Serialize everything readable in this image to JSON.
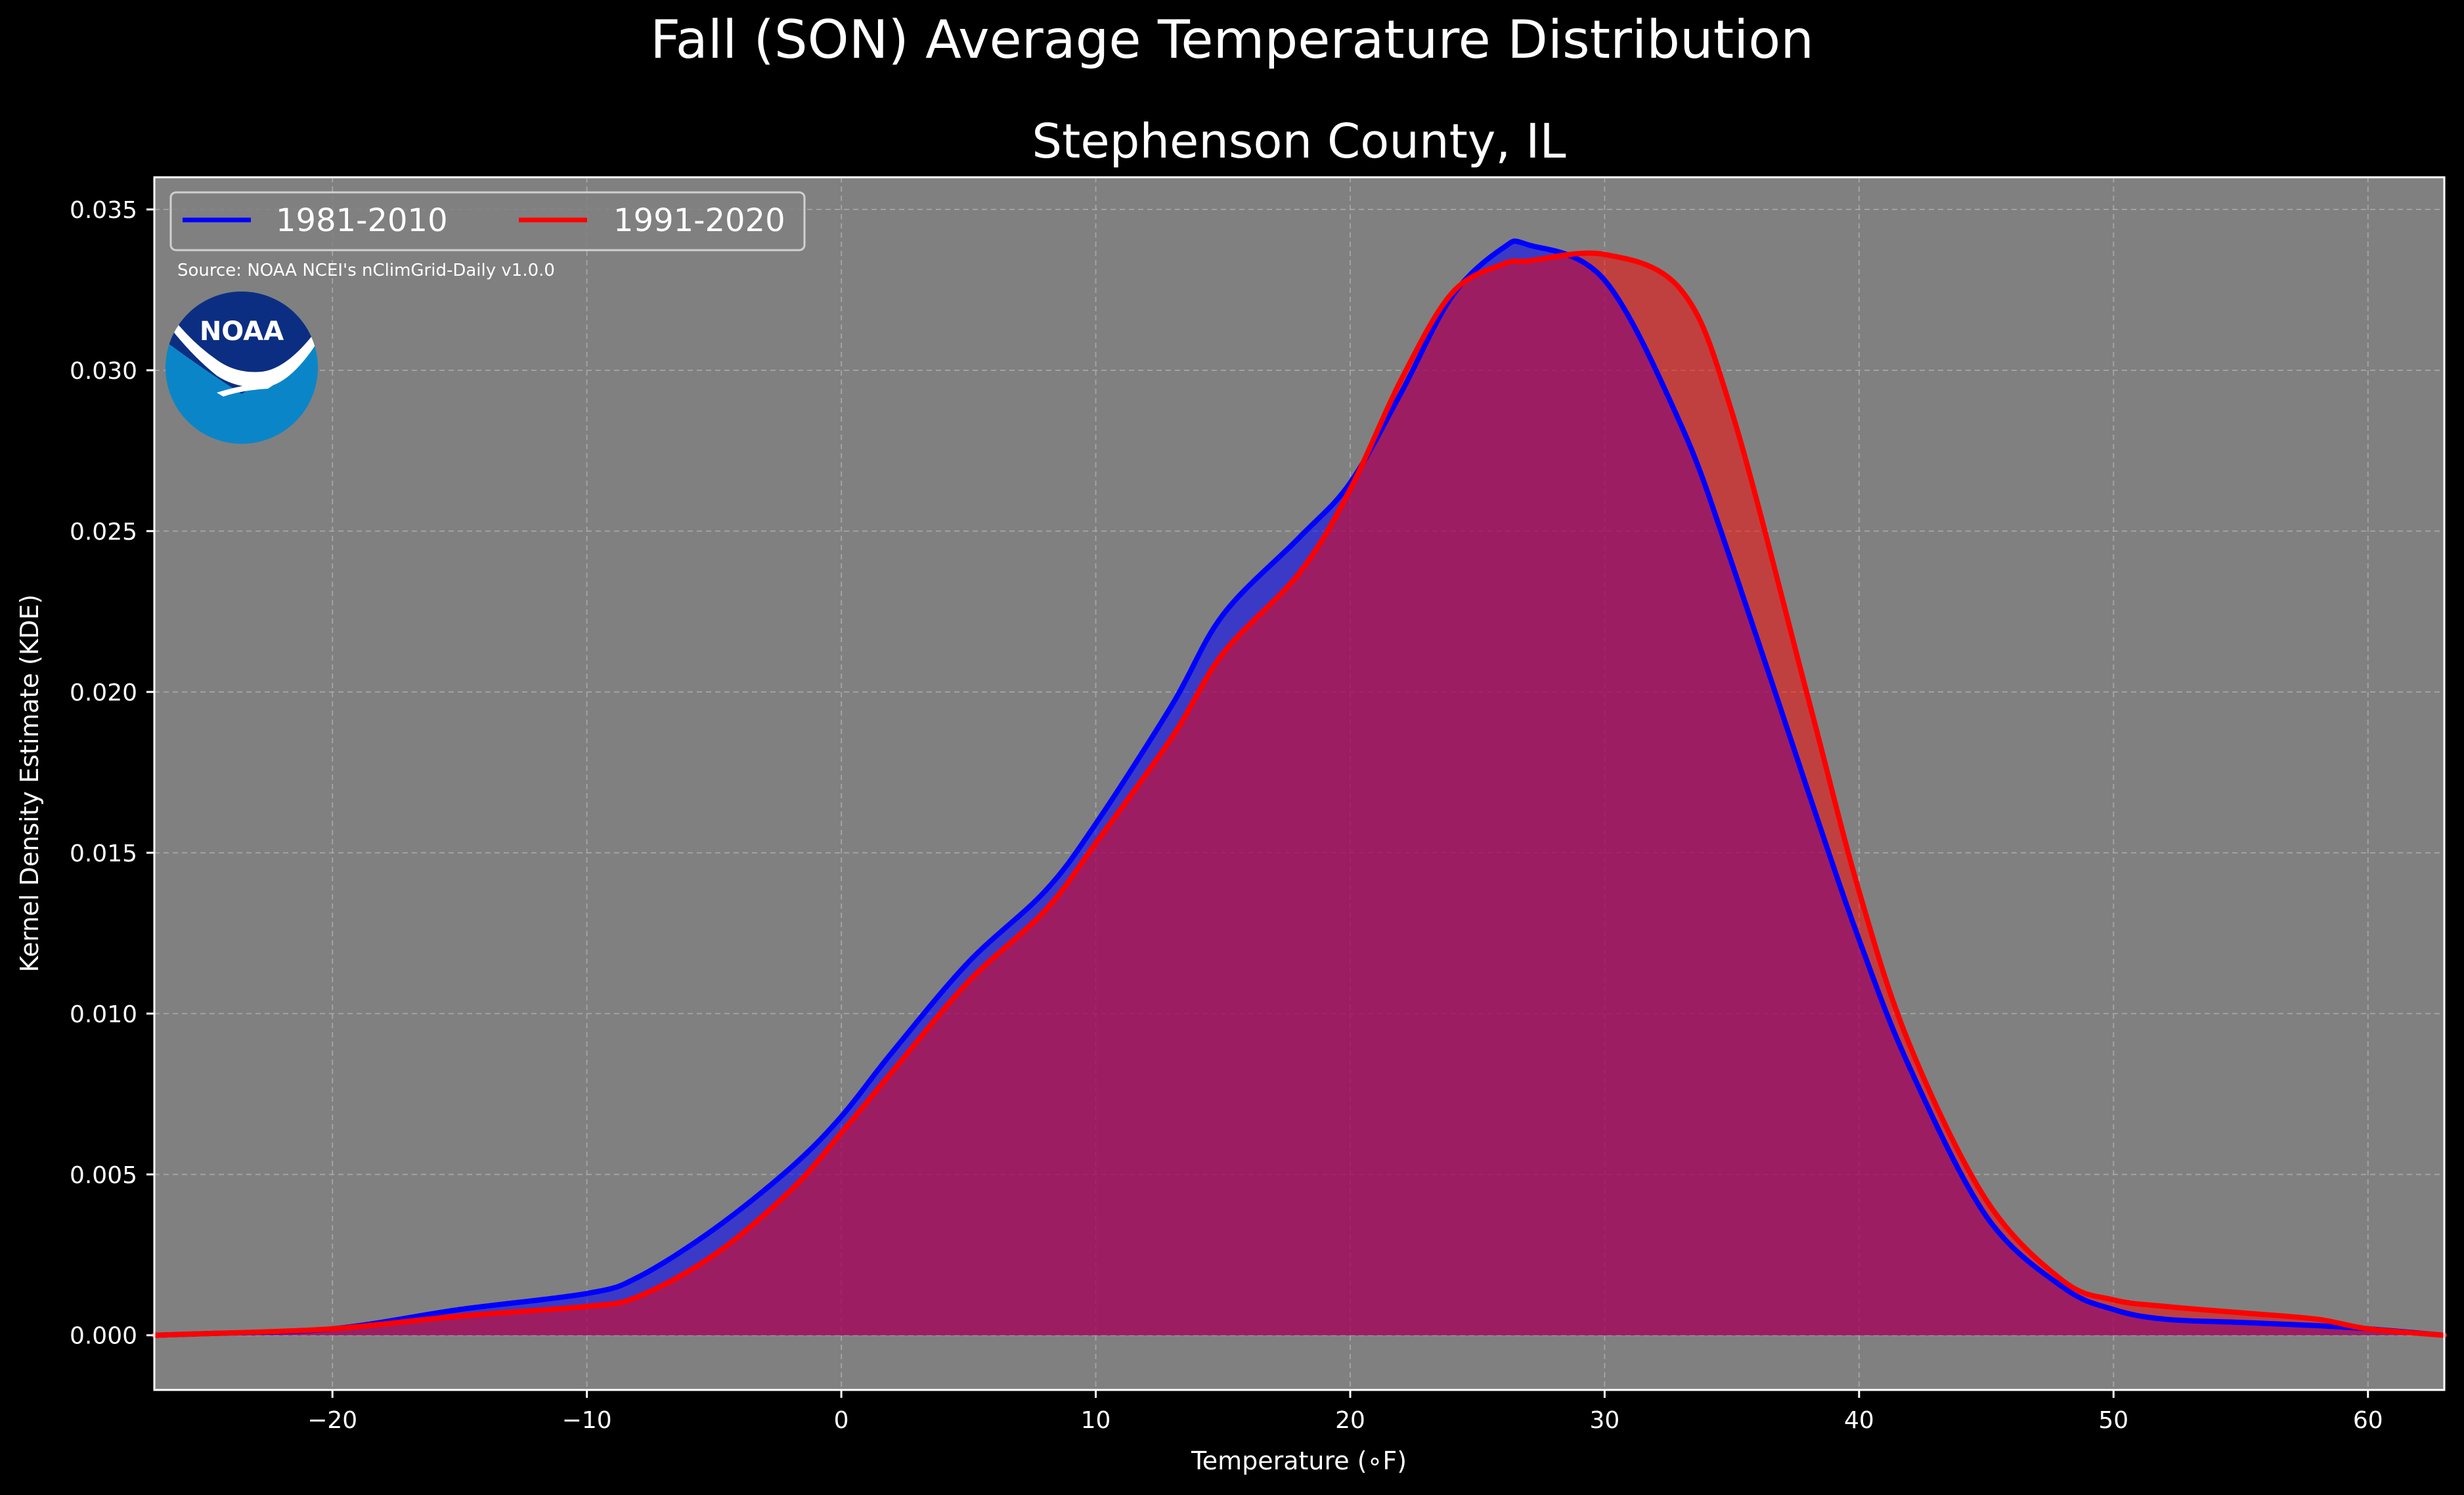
{
  "chart_data": {
    "type": "area",
    "title": "Fall (SON) Average Temperature Distribution",
    "subtitle": "Stephenson County, IL",
    "xlabel": "Temperature (∘F)",
    "ylabel": "Kernel Density Estimate (KDE)",
    "xlim": [
      -27,
      63
    ],
    "ylim": [
      -0.0017,
      0.036
    ],
    "x_ticks": [
      -20,
      -10,
      0,
      10,
      20,
      30,
      40,
      50,
      60
    ],
    "x_tick_labels": [
      "−20",
      "−10",
      "0",
      "10",
      "20",
      "30",
      "40",
      "50",
      "60"
    ],
    "y_ticks": [
      0.0,
      0.005,
      0.01,
      0.015,
      0.02,
      0.025,
      0.03,
      0.035
    ],
    "y_tick_labels": [
      "0.000",
      "0.005",
      "0.010",
      "0.015",
      "0.020",
      "0.025",
      "0.030",
      "0.035"
    ],
    "grid": true,
    "legend_position": "top-left",
    "background_color": "#808080",
    "x": [
      -27,
      -25,
      -20,
      -15,
      -10,
      -8,
      -5,
      -2,
      0,
      2,
      5,
      8,
      10,
      13,
      15,
      18,
      20,
      22,
      24,
      26,
      27,
      30,
      33,
      35,
      38,
      40,
      42,
      45,
      48,
      50,
      52,
      55,
      58,
      60,
      63
    ],
    "series": [
      {
        "name": "1981-2010",
        "color": "#0000ff",
        "values": [
          0.0,
          5e-05,
          0.0002,
          0.0008,
          0.0013,
          0.0018,
          0.0033,
          0.0052,
          0.0068,
          0.0088,
          0.0116,
          0.0138,
          0.0159,
          0.0196,
          0.0224,
          0.0248,
          0.0265,
          0.0293,
          0.0323,
          0.0338,
          0.0339,
          0.0328,
          0.0283,
          0.024,
          0.0169,
          0.0123,
          0.0083,
          0.0037,
          0.0015,
          0.0008,
          0.0005,
          0.0004,
          0.0003,
          0.0002,
          0.0
        ]
      },
      {
        "name": "1991-2020",
        "color": "#ff0000",
        "values": [
          0.0,
          5e-05,
          0.0002,
          0.0006,
          0.0009,
          0.0012,
          0.0025,
          0.0045,
          0.0063,
          0.0082,
          0.011,
          0.0132,
          0.0153,
          0.0186,
          0.0212,
          0.0237,
          0.0263,
          0.0297,
          0.0324,
          0.0333,
          0.0334,
          0.0336,
          0.0325,
          0.0287,
          0.0198,
          0.0138,
          0.009,
          0.0042,
          0.0017,
          0.0011,
          0.0009,
          0.0007,
          0.0005,
          0.0002,
          0.0
        ]
      }
    ],
    "annotations": {
      "source": "Source: NOAA NCEI's nClimGrid-Daily v1.0.0",
      "logo_text": "NOAA"
    }
  }
}
